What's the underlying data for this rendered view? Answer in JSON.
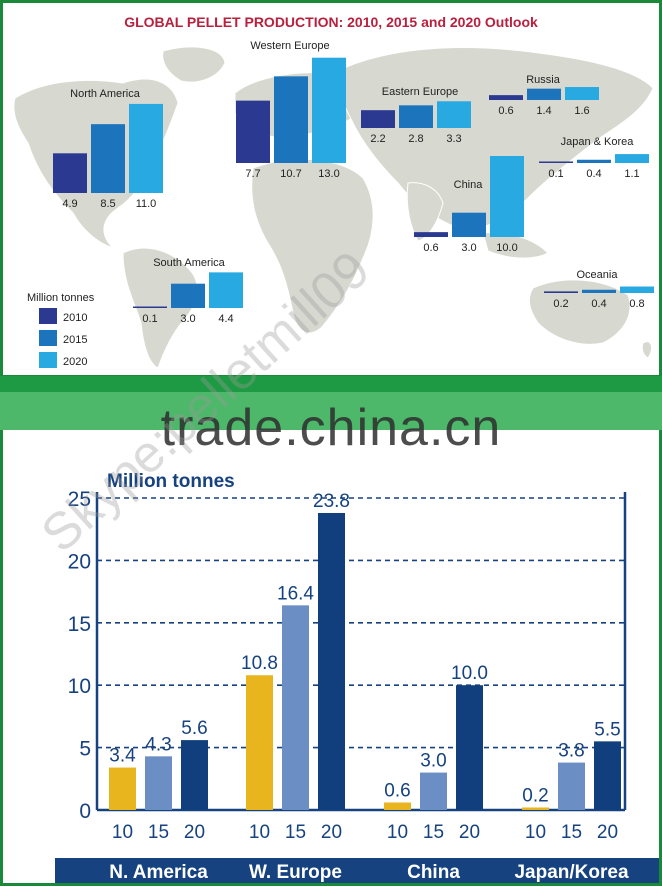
{
  "top_chart": {
    "title": "GLOBAL PELLET PRODUCTION:  2010, 2015 and 2020 Outlook",
    "legend_title": "Million tonnes",
    "legend": [
      {
        "label": "2010",
        "color": "#2b3990"
      },
      {
        "label": "2015",
        "color": "#1c75bc"
      },
      {
        "label": "2020",
        "color": "#29a9e1"
      }
    ],
    "regions": [
      {
        "name": "North America",
        "values": [
          4.9,
          8.5,
          11.0
        ],
        "labels": [
          "4.9",
          "8.5",
          "11.0"
        ]
      },
      {
        "name": "Western Europe",
        "values": [
          7.7,
          10.7,
          13.0
        ],
        "labels": [
          "7.7",
          "10.7",
          "13.0"
        ]
      },
      {
        "name": "Eastern Europe",
        "values": [
          2.2,
          2.8,
          3.3
        ],
        "labels": [
          "2.2",
          "2.8",
          "3.3"
        ]
      },
      {
        "name": "Russia",
        "values": [
          0.6,
          1.4,
          1.6
        ],
        "labels": [
          "0.6",
          "1.4",
          "1.6"
        ]
      },
      {
        "name": "Japan & Korea",
        "values": [
          0.1,
          0.4,
          1.1
        ],
        "labels": [
          "0.1",
          "0.4",
          "1.1"
        ]
      },
      {
        "name": "China",
        "values": [
          0.6,
          3.0,
          10.0
        ],
        "labels": [
          "0.6",
          "3.0",
          "10.0"
        ]
      },
      {
        "name": "South America",
        "values": [
          0.1,
          3.0,
          4.4
        ],
        "labels": [
          "0.1",
          "3.0",
          "4.4"
        ]
      },
      {
        "name": "Oceania",
        "values": [
          0.2,
          0.4,
          0.8
        ],
        "labels": [
          "0.2",
          "0.4",
          "0.8"
        ]
      }
    ]
  },
  "watermark": {
    "site": "trade.china.cn",
    "contact": "Skype:pelletmill09"
  },
  "chart_data": {
    "type": "bar",
    "ylabel": "Million tonnes",
    "ylim": [
      0,
      25
    ],
    "yticks": [
      "0",
      "5",
      "10",
      "15",
      "20",
      "25"
    ],
    "grid": "dashed horizontal",
    "groups": [
      {
        "name": "N. America",
        "x": [
          "10",
          "15",
          "20"
        ],
        "values": [
          3.4,
          4.3,
          5.6
        ],
        "labels": [
          "3.4",
          "4.3",
          "5.6"
        ]
      },
      {
        "name": "W. Europe",
        "x": [
          "10",
          "15",
          "20"
        ],
        "values": [
          10.8,
          16.4,
          23.8
        ],
        "labels": [
          "10.8",
          "16.4",
          "23.8"
        ]
      },
      {
        "name": "China",
        "x": [
          "10",
          "15",
          "20"
        ],
        "values": [
          0.6,
          3.0,
          10.0
        ],
        "labels": [
          "0.6",
          "3.0",
          "10.0"
        ]
      },
      {
        "name": "Japan/Korea",
        "x": [
          "10",
          "15",
          "20"
        ],
        "values": [
          0.2,
          3.8,
          5.5
        ],
        "labels": [
          "0.2",
          "3.8",
          "5.5"
        ]
      }
    ],
    "colors": {
      "10": "#e9b51f",
      "15": "#6b8fc4",
      "20": "#113f7d"
    }
  }
}
